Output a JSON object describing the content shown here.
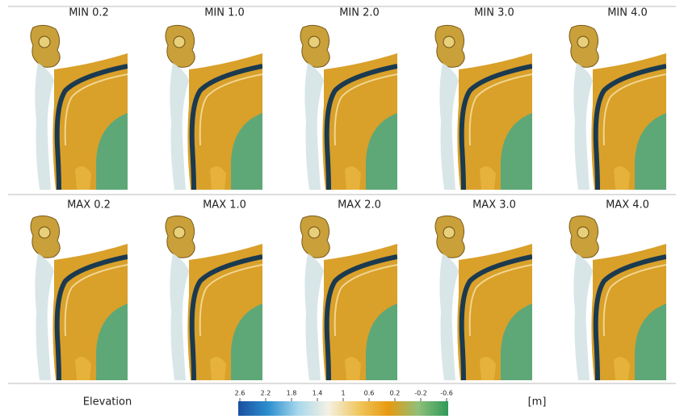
{
  "panels": {
    "rows": [
      [
        "MIN 0.2",
        "MIN 1.0",
        "MIN 2.0",
        "MIN 3.0",
        "MIN 4.0"
      ],
      [
        "MAX 0.2",
        "MAX 1.0",
        "MAX 2.0",
        "MAX 3.0",
        "MAX 4.0"
      ]
    ]
  },
  "colorbar": {
    "title": "Elevation",
    "unit": "[m]",
    "range": [
      2.6,
      -0.6
    ],
    "ticks": [
      2.6,
      2.2,
      1.8,
      1.4,
      1,
      0.6,
      0.2,
      -0.2,
      -0.6
    ],
    "colors": [
      "#1a4fa0",
      "#2c8fd0",
      "#a8d8ec",
      "#f4f1e4",
      "#f0c860",
      "#e89a10",
      "#8fc07a",
      "#2f9a5a"
    ]
  }
}
